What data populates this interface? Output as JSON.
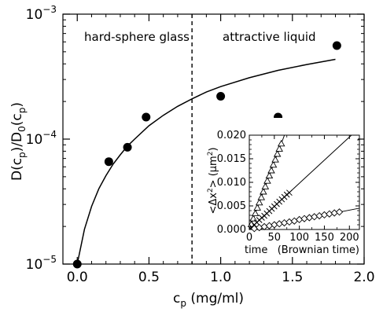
{
  "chart_data": [
    {
      "id": "main",
      "type": "scatter",
      "xlabel_base": "c",
      "xlabel_sub": "p",
      "xlabel_rest": " (mg/ml)",
      "ylabel_parts": [
        {
          "t": "D(c",
          "sub": false
        },
        {
          "t": "p",
          "sub": true
        },
        {
          "t": ")/D",
          "sub": false
        },
        {
          "t": "0",
          "sub": true
        },
        {
          "t": "(c",
          "sub": false
        },
        {
          "t": "p",
          "sub": true
        },
        {
          "t": ")",
          "sub": false
        }
      ],
      "xlim": [
        -0.1,
        2.0
      ],
      "ylim": [
        1e-05,
        0.001
      ],
      "y_scale": "log",
      "x_ticks": [
        {
          "v": 0.0,
          "label": "0.0"
        },
        {
          "v": 0.5,
          "label": "0.5"
        },
        {
          "v": 1.0,
          "label": "1.0"
        },
        {
          "v": 1.5,
          "label": "1.5"
        },
        {
          "v": 2.0,
          "label": "2.0"
        }
      ],
      "y_ticks": [
        {
          "v": 1e-05,
          "base": "10",
          "exp": "−5"
        },
        {
          "v": 0.0001,
          "base": "10",
          "exp": "−4"
        },
        {
          "v": 0.001,
          "base": "10",
          "exp": "−3"
        }
      ],
      "points": [
        {
          "x": 0.0,
          "y": 1e-05
        },
        {
          "x": 0.22,
          "y": 6.6e-05
        },
        {
          "x": 0.35,
          "y": 8.6e-05
        },
        {
          "x": 0.48,
          "y": 0.00015
        },
        {
          "x": 1.0,
          "y": 0.00022
        },
        {
          "x": 1.4,
          "y": 0.00015
        },
        {
          "x": 1.81,
          "y": 0.00056
        }
      ],
      "fit_curve": {
        "x": [
          0.0,
          0.05,
          0.1,
          0.15,
          0.2,
          0.25,
          0.3,
          0.35,
          0.4,
          0.5,
          0.6,
          0.7,
          0.8,
          0.9,
          1.0,
          1.2,
          1.4,
          1.6,
          1.8
        ],
        "y": [
          1e-05,
          1.9e-05,
          2.9e-05,
          4e-05,
          5.1e-05,
          6.3e-05,
          7.5e-05,
          8.8e-05,
          0.0001,
          0.000128,
          0.000155,
          0.000183,
          0.00021,
          0.000238,
          0.000263,
          0.00031,
          0.000355,
          0.000395,
          0.000435
        ]
      },
      "divider_x": 0.8,
      "annotations": [
        "hard-sphere glass",
        "attractive liquid"
      ]
    },
    {
      "id": "inset",
      "type": "scatter",
      "xlabel": "time   (Brownian time)",
      "ylabel_base": "<Δx",
      "ylabel_sup": "2",
      "ylabel_mid": ">  (μm",
      "ylabel_sup2": "2",
      "ylabel_end": ")",
      "xlim": [
        0,
        220
      ],
      "ylim": [
        0,
        0.02
      ],
      "x_ticks": [
        {
          "v": 0,
          "label": "0"
        },
        {
          "v": 50,
          "label": "50"
        },
        {
          "v": 100,
          "label": "100"
        },
        {
          "v": 150,
          "label": "150"
        },
        {
          "v": 200,
          "label": "200"
        }
      ],
      "y_ticks": [
        {
          "v": 0.0,
          "label": "0.000"
        },
        {
          "v": 0.005,
          "label": "0.005"
        },
        {
          "v": 0.01,
          "label": "0.010"
        },
        {
          "v": 0.015,
          "label": "0.015"
        },
        {
          "v": 0.02,
          "label": "0.020"
        }
      ],
      "series": [
        {
          "marker": "triangle",
          "slope": 0.000285,
          "x": [
            4,
            8,
            12,
            16,
            20,
            24,
            28,
            32,
            36,
            40,
            44,
            48,
            52,
            56,
            60,
            64
          ],
          "y": [
            0.0011,
            0.0023,
            0.0034,
            0.0046,
            0.0057,
            0.0068,
            0.008,
            0.0091,
            0.0103,
            0.0114,
            0.0125,
            0.0137,
            0.0148,
            0.016,
            0.0171,
            0.0182
          ]
        },
        {
          "marker": "cross",
          "slope": 9.8e-05,
          "x": [
            5,
            10,
            15,
            20,
            25,
            30,
            35,
            40,
            45,
            50,
            55,
            60,
            65,
            70,
            75,
            80
          ],
          "y": [
            0.0005,
            0.001,
            0.0015,
            0.002,
            0.0025,
            0.0029,
            0.0034,
            0.0039,
            0.0044,
            0.0049,
            0.0054,
            0.0059,
            0.0064,
            0.0069,
            0.0074,
            0.0078
          ]
        },
        {
          "marker": "diamond",
          "slope": 2.05e-05,
          "x": [
            10,
            20,
            30,
            40,
            50,
            60,
            70,
            80,
            90,
            100,
            110,
            120,
            130,
            140,
            150,
            160,
            170,
            180
          ],
          "y": [
            0.0002,
            0.0004,
            0.0006,
            0.0008,
            0.001,
            0.0012,
            0.0014,
            0.0016,
            0.0018,
            0.0021,
            0.0023,
            0.0025,
            0.0027,
            0.0029,
            0.0031,
            0.0033,
            0.0035,
            0.0037
          ]
        }
      ]
    }
  ]
}
